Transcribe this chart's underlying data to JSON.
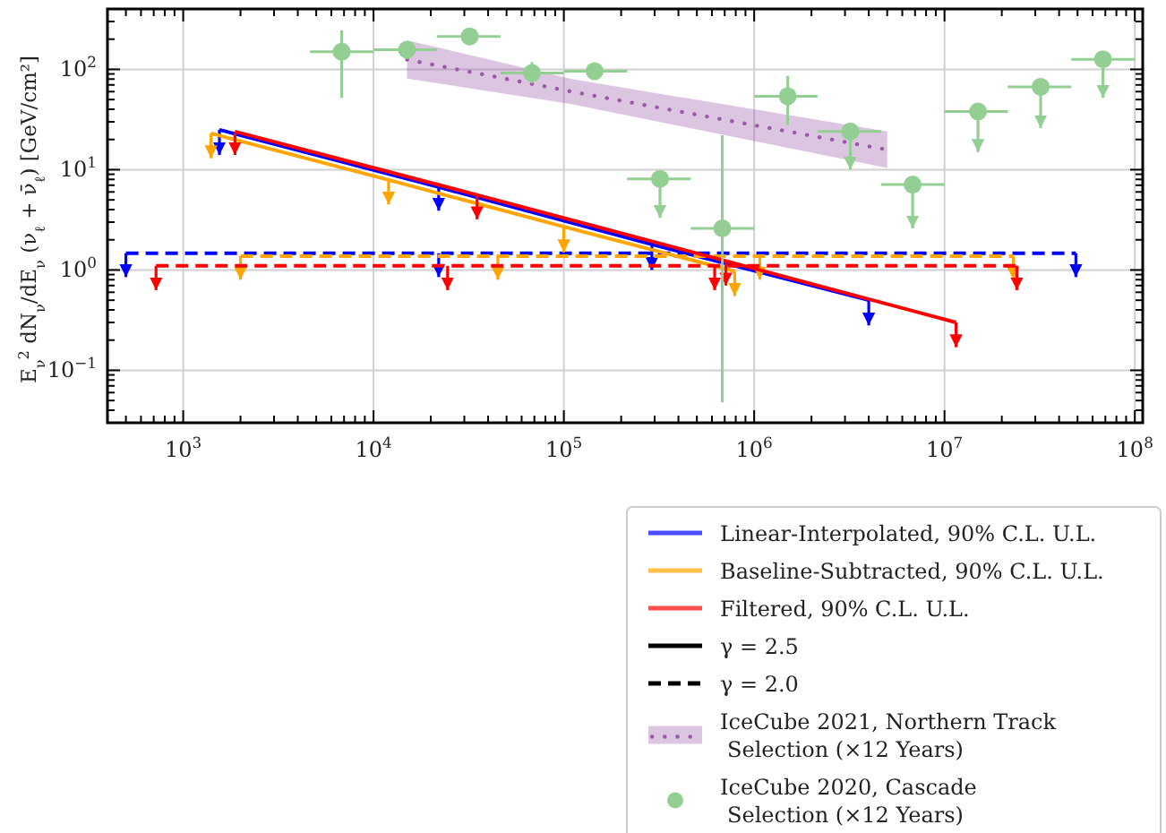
{
  "chart_data": {
    "type": "line",
    "log": "xy",
    "xlim": [
      400,
      110000000
    ],
    "ylim": [
      0.03,
      400
    ],
    "xticks": [
      {
        "value": 500,
        "label": null
      },
      {
        "value": 600,
        "label": null
      },
      {
        "value": 700,
        "label": null
      },
      {
        "value": 800,
        "label": null
      },
      {
        "value": 900,
        "label": null
      },
      {
        "value": 1000,
        "label": "10$^{3}$"
      },
      {
        "value": 2000,
        "label": null
      },
      {
        "value": 3000,
        "label": null
      },
      {
        "value": 4000,
        "label": null
      },
      {
        "value": 5000,
        "label": null
      },
      {
        "value": 6000,
        "label": null
      },
      {
        "value": 7000,
        "label": null
      },
      {
        "value": 8000,
        "label": null
      },
      {
        "value": 9000,
        "label": null
      },
      {
        "value": 10000,
        "label": "10$^{4}$"
      },
      {
        "value": 20000,
        "label": null
      },
      {
        "value": 30000,
        "label": null
      },
      {
        "value": 40000,
        "label": null
      },
      {
        "value": 50000,
        "label": null
      },
      {
        "value": 60000,
        "label": null
      },
      {
        "value": 70000,
        "label": null
      },
      {
        "value": 80000,
        "label": null
      },
      {
        "value": 90000,
        "label": null
      },
      {
        "value": 100000,
        "label": "10$^{5}$"
      },
      {
        "value": 200000,
        "label": null
      },
      {
        "value": 300000,
        "label": null
      },
      {
        "value": 400000,
        "label": null
      },
      {
        "value": 500000,
        "label": null
      },
      {
        "value": 600000,
        "label": null
      },
      {
        "value": 700000,
        "label": null
      },
      {
        "value": 800000,
        "label": null
      },
      {
        "value": 900000,
        "label": null
      },
      {
        "value": 1000000,
        "label": "10$^{6}$"
      },
      {
        "value": 2000000,
        "label": null
      },
      {
        "value": 3000000,
        "label": null
      },
      {
        "value": 4000000,
        "label": null
      },
      {
        "value": 5000000,
        "label": null
      },
      {
        "value": 6000000,
        "label": null
      },
      {
        "value": 7000000,
        "label": null
      },
      {
        "value": 8000000,
        "label": null
      },
      {
        "value": 9000000,
        "label": null
      },
      {
        "value": 10000000,
        "label": "10$^{7}$"
      },
      {
        "value": 20000000,
        "label": null
      },
      {
        "value": 30000000,
        "label": null
      },
      {
        "value": 40000000,
        "label": null
      },
      {
        "value": 50000000,
        "label": null
      },
      {
        "value": 60000000,
        "label": null
      },
      {
        "value": 70000000,
        "label": null
      },
      {
        "value": 80000000,
        "label": null
      },
      {
        "value": 90000000,
        "label": null
      },
      {
        "value": 100000000,
        "label": "10$^{8}$"
      }
    ],
    "yticks": [
      {
        "value": 0.04,
        "label": null
      },
      {
        "value": 0.05,
        "label": null
      },
      {
        "value": 0.06,
        "label": null
      },
      {
        "value": 0.07,
        "label": null
      },
      {
        "value": 0.08,
        "label": null
      },
      {
        "value": 0.09,
        "label": null
      },
      {
        "value": 0.1,
        "label": "10$^{−1}$"
      },
      {
        "value": 0.2,
        "label": null
      },
      {
        "value": 0.3,
        "label": null
      },
      {
        "value": 0.4,
        "label": null
      },
      {
        "value": 0.5,
        "label": null
      },
      {
        "value": 0.6,
        "label": null
      },
      {
        "value": 0.7,
        "label": null
      },
      {
        "value": 0.8,
        "label": null
      },
      {
        "value": 0.9,
        "label": null
      },
      {
        "value": 1,
        "label": "10$^{0}$"
      },
      {
        "value": 2,
        "label": null
      },
      {
        "value": 3,
        "label": null
      },
      {
        "value": 4,
        "label": null
      },
      {
        "value": 5,
        "label": null
      },
      {
        "value": 6,
        "label": null
      },
      {
        "value": 7,
        "label": null
      },
      {
        "value": 8,
        "label": null
      },
      {
        "value": 9,
        "label": null
      },
      {
        "value": 10,
        "label": "10$^{1}$"
      },
      {
        "value": 20,
        "label": null
      },
      {
        "value": 30,
        "label": null
      },
      {
        "value": 40,
        "label": null
      },
      {
        "value": 50,
        "label": null
      },
      {
        "value": 60,
        "label": null
      },
      {
        "value": 70,
        "label": null
      },
      {
        "value": 80,
        "label": null
      },
      {
        "value": 90,
        "label": null
      },
      {
        "value": 100,
        "label": "10$^{2}$"
      },
      {
        "value": 200,
        "label": null
      },
      {
        "value": 300,
        "label": null
      }
    ],
    "ylabel": "E$_{ν}$$^{2}$ dN$_{ν}$/dE$_{ν}$ (ν$_{ℓ}$ + ν̄$_{ℓ}$) [GeV/cm²]",
    "grid": true,
    "legend": "bottom right",
    "series": [
      {
        "name": "Linear-Interpolated, 90% C.L. U.L.",
        "color": "#0000ff",
        "line_style": "solid",
        "x": [
          1550,
          22000,
          290000,
          4000000
        ],
        "values": [
          25,
          6.7,
          1.8,
          0.5
        ],
        "errors": [
          [
            14,
            25
          ],
          [
            3.9,
            6.7
          ],
          [
            1.0,
            1.8
          ],
          [
            0.28,
            0.5
          ]
        ]
      },
      {
        "color": "#0000ff",
        "line_style": "dashed",
        "x": [
          500,
          22000,
          49000000
        ],
        "values": [
          1.47,
          1.47,
          1.47
        ],
        "errors": [
          [
            0.85,
            1.47
          ],
          [
            0.85,
            1.47
          ],
          [
            0.85,
            1.47
          ]
        ]
      },
      {
        "name": "Baseline-Subtracted, 90% C.L. U.L.",
        "color": "#ffa500",
        "line_style": "solid",
        "x": [
          1400,
          12000,
          100000,
          790000
        ],
        "values": [
          23,
          7.9,
          2.7,
          0.97
        ],
        "errors": [
          [
            13,
            23
          ],
          [
            4.5,
            7.9
          ],
          [
            1.5,
            2.7
          ],
          [
            0.55,
            0.97
          ]
        ]
      },
      {
        "color": "#ffa500",
        "line_style": "dashed",
        "x": [
          2000,
          45000,
          1070000,
          23000000
        ],
        "values": [
          1.37,
          1.37,
          1.37,
          1.37
        ],
        "errors": [
          [
            0.8,
            1.37
          ],
          [
            0.8,
            1.37
          ],
          [
            0.8,
            1.37
          ],
          [
            0.8,
            1.37
          ]
        ]
      },
      {
        "name": "Filtered, 90% C.L. U.L.",
        "color": "#ff0000",
        "line_style": "solid",
        "x": [
          1870,
          35000,
          710000,
          11500000
        ],
        "values": [
          24,
          5.6,
          1.23,
          0.3
        ],
        "errors": [
          [
            14,
            24
          ],
          [
            3.2,
            5.6
          ],
          [
            0.7,
            1.23
          ],
          [
            0.17,
            0.3
          ]
        ]
      },
      {
        "color": "#ff0000",
        "line_style": "dashed",
        "x": [
          720,
          24500,
          620000,
          24000000
        ],
        "values": [
          1.1,
          1.1,
          1.1,
          1.1
        ],
        "errors": [
          [
            0.63,
            1.1
          ],
          [
            0.63,
            1.1
          ],
          [
            0.63,
            1.1
          ],
          [
            0.63,
            1.1
          ]
        ]
      },
      {
        "name": "γ = 2.5",
        "color": "#000000",
        "line_style": "solid"
      },
      {
        "name": "γ = 2.0",
        "color": "#000000",
        "line_style": "dashed"
      },
      {
        "type": "line",
        "line_style": "dotted",
        "name": "IceCube 2021, Northern Track\nSelection (×12 Years)",
        "color": "#9a5aa8",
        "x": [
          15000,
          110000,
          5000000
        ],
        "values": [
          125,
          60,
          15.8
        ],
        "lower": [
          81,
          45,
          10.4
        ],
        "upper": [
          195,
          80,
          24
        ]
      },
      {
        "type": "scatter",
        "name": "IceCube 2020, Cascade\nSelection (×12 Years)",
        "color": "#93cf93",
        "marker": "circle",
        "x": [
          6800,
          15000,
          32000,
          68000,
          145000,
          320000,
          680000,
          1500000,
          3200000,
          6800000,
          15000000,
          32000000,
          68000000
        ],
        "values": [
          150,
          157,
          213,
          92,
          96,
          8.1,
          2.6,
          54,
          24,
          7.1,
          38,
          67,
          126
        ],
        "errors": [
          [
            52,
            245
          ],
          [
            127,
            190
          ],
          null,
          [
            73,
            118
          ],
          null,
          [
            3.3,
            8.1
          ],
          [
            0.048,
            22
          ],
          [
            28,
            86
          ],
          [
            10,
            24
          ],
          [
            2.6,
            7.1
          ],
          [
            15,
            38
          ],
          [
            26,
            67
          ],
          [
            52,
            126
          ]
        ],
        "xerrors": [
          [
            4640,
            10000
          ],
          [
            10000,
            21500
          ],
          [
            21500,
            46400
          ],
          [
            46400,
            100000
          ],
          [
            100000,
            215000
          ],
          [
            215000,
            464000
          ],
          [
            464000,
            1000000
          ],
          [
            1000000,
            2150000
          ],
          [
            2150000,
            4640000
          ],
          [
            4640000,
            10000000
          ],
          [
            10000000,
            21500000
          ],
          [
            21500000,
            46400000
          ],
          [
            46400000,
            100000000
          ]
        ]
      }
    ]
  }
}
